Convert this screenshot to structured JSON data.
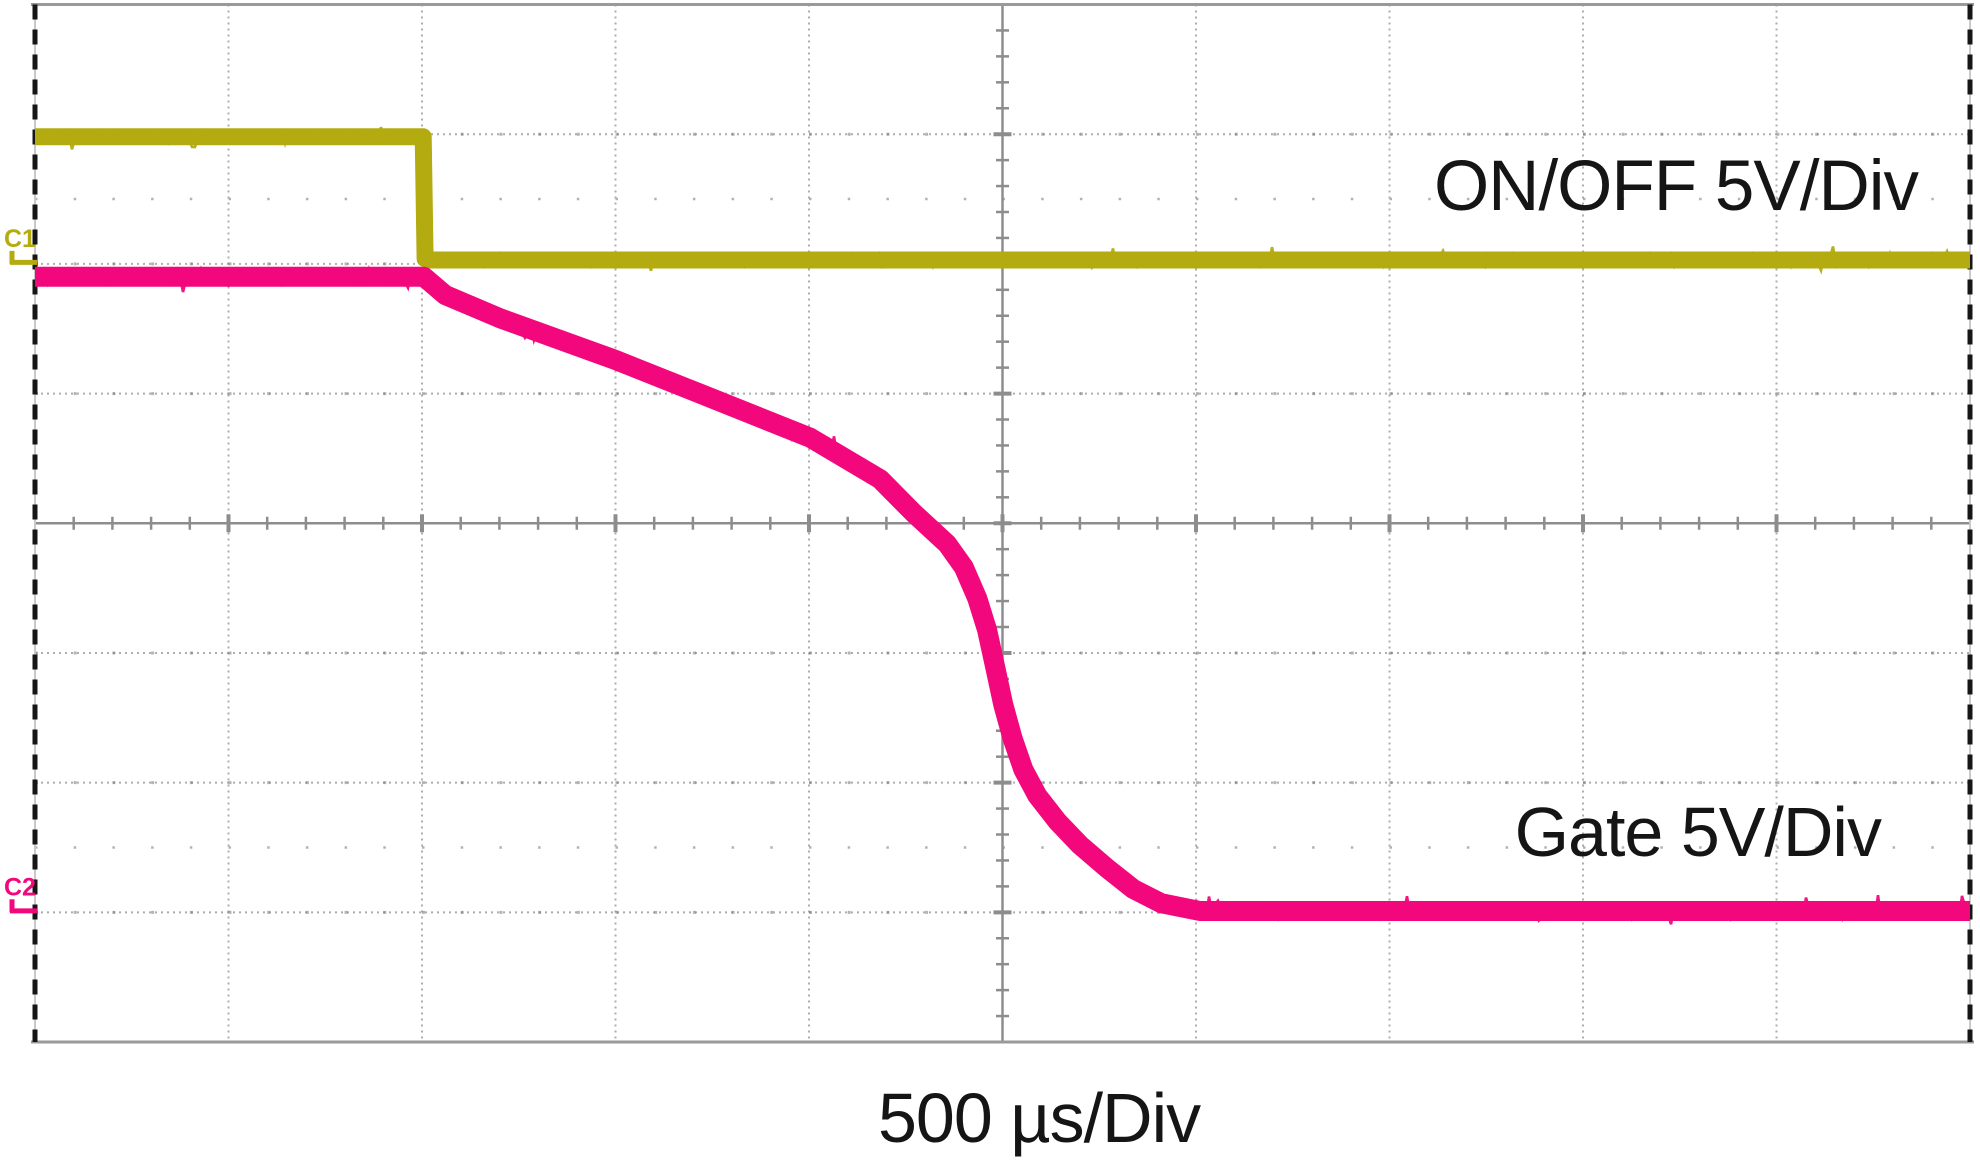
{
  "scope": {
    "ch1_label": "ON/OFF 5V/Div",
    "ch2_label": "Gate 5V/Div",
    "timebase_label": "500 µs/Div",
    "colors": {
      "ch1": "#b3ab10",
      "ch2": "#f2077c",
      "grid": "#8d8d8d",
      "grid_dots": "#9a9a9a",
      "border_solid": "#9a9a9a",
      "border_dash": "#161616",
      "text": "#151515",
      "background": "#ffffff"
    }
  },
  "chart_data": {
    "type": "line",
    "title": "",
    "xlabel": "500 µs/Div",
    "ylabel": "",
    "x_axis": {
      "divisions": 10,
      "us_per_div": 500,
      "range_us": [
        0,
        5000
      ]
    },
    "y_axis": {
      "divisions": 8,
      "volts_per_div": 5
    },
    "grid": {
      "division_lines": "dotted",
      "center_axes": "solid-with-minor-ticks",
      "minor_per_div": 5,
      "half_div_dot_rows_from_top": [
        1.5,
        6.5
      ]
    },
    "legend_position": "labels-inside-plot-right",
    "series": [
      {
        "name": "C1",
        "label": "ON/OFF 5V/Div",
        "color": "#b3ab10",
        "ground_div_from_top": 2.0,
        "points_t_us_V": [
          [
            0,
            4.9
          ],
          [
            1003,
            4.9
          ],
          [
            1008,
            0.2
          ],
          [
            1015,
            0.15
          ],
          [
            5000,
            0.15
          ]
        ]
      },
      {
        "name": "C2",
        "label": "Gate 5V/Div",
        "color": "#f2077c",
        "ground_div_from_top": 7.0,
        "points_t_us_V": [
          [
            0,
            24.5
          ],
          [
            1005,
            24.5
          ],
          [
            1060,
            23.8
          ],
          [
            1202,
            22.9
          ],
          [
            1499,
            21.3
          ],
          [
            1718,
            20.0
          ],
          [
            2003,
            18.3
          ],
          [
            2184,
            16.7
          ],
          [
            2270,
            15.4
          ],
          [
            2357,
            14.2
          ],
          [
            2400,
            13.3
          ],
          [
            2435,
            12.1
          ],
          [
            2460,
            10.9
          ],
          [
            2482,
            9.4
          ],
          [
            2502,
            8.0
          ],
          [
            2526,
            6.7
          ],
          [
            2554,
            5.5
          ],
          [
            2590,
            4.5
          ],
          [
            2642,
            3.5
          ],
          [
            2700,
            2.6
          ],
          [
            2770,
            1.7
          ],
          [
            2838,
            0.9
          ],
          [
            2910,
            0.35
          ],
          [
            3010,
            0.05
          ],
          [
            5000,
            0.05
          ]
        ]
      }
    ]
  }
}
